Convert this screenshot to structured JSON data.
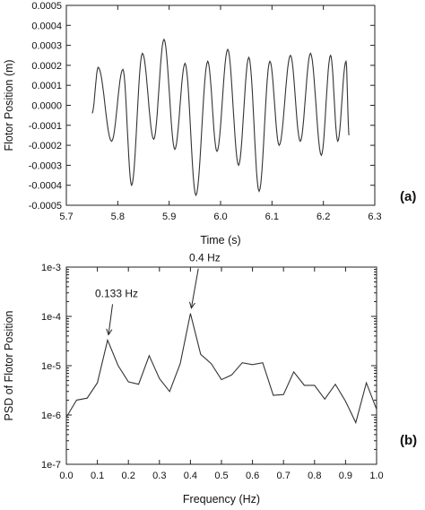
{
  "chart_data": [
    {
      "type": "line",
      "panel_label": "(a)",
      "xlabel": "Time  (s)",
      "ylabel": "Flotor Position  (m)",
      "xlim": [
        5.7,
        6.3
      ],
      "ylim": [
        -0.0005,
        0.0005
      ],
      "xticks": [
        "5.7",
        "5.8",
        "5.9",
        "6.0",
        "6.1",
        "6.2",
        "6.3"
      ],
      "yticks": [
        "0.0005",
        "0.0004",
        "0.0003",
        "0.0002",
        "0.0001",
        "0.0000",
        "-0.0001",
        "-0.0002",
        "-0.0003",
        "-0.0004",
        "-0.0005"
      ],
      "grid": false,
      "extrema": {
        "x": [
          5.75,
          5.762,
          5.788,
          5.81,
          5.827,
          5.848,
          5.87,
          5.89,
          5.911,
          5.931,
          5.952,
          5.975,
          5.993,
          6.014,
          6.035,
          6.055,
          6.075,
          6.096,
          6.114,
          6.136,
          6.155,
          6.175,
          6.196,
          6.214,
          6.228,
          6.244,
          6.25
        ],
        "y": [
          -4e-05,
          0.00019,
          -0.00018,
          0.00018,
          -0.0004,
          0.00026,
          -0.00017,
          0.00033,
          -0.00022,
          0.00021,
          -0.00045,
          0.00022,
          -0.00023,
          0.00028,
          -0.0003,
          0.00024,
          -0.00043,
          0.00022,
          -0.0002,
          0.00025,
          -0.00018,
          0.00026,
          -0.00025,
          0.00025,
          -0.00018,
          0.00022,
          -0.00015
        ]
      }
    },
    {
      "type": "line",
      "panel_label": "(b)",
      "xlabel": "Frequency  (Hz)",
      "ylabel": "PSD of Flotor Position",
      "xlim": [
        0.0,
        1.0
      ],
      "ylim": [
        1e-07,
        0.001
      ],
      "yscale": "log",
      "xticks": [
        "0.0",
        "0.1",
        "0.2",
        "0.3",
        "0.4",
        "0.5",
        "0.6",
        "0.7",
        "0.8",
        "0.9",
        "1.0"
      ],
      "yticks": [
        "1e-3",
        "1e-4",
        "1e-5",
        "1e-6",
        "1e-7"
      ],
      "grid": false,
      "x": [
        0.0,
        0.033,
        0.067,
        0.1,
        0.133,
        0.167,
        0.2,
        0.233,
        0.267,
        0.3,
        0.333,
        0.367,
        0.4,
        0.433,
        0.467,
        0.5,
        0.533,
        0.567,
        0.6,
        0.633,
        0.667,
        0.7,
        0.733,
        0.767,
        0.8,
        0.833,
        0.867,
        0.9,
        0.933,
        0.967,
        1.0
      ],
      "y": [
        9e-07,
        2e-06,
        2.2e-06,
        4.5e-06,
        3.3e-05,
        1e-05,
        4.7e-06,
        4.2e-06,
        1.6e-05,
        5.5e-06,
        3e-06,
        1.1e-05,
        0.000115,
        1.7e-05,
        1.1e-05,
        5.2e-06,
        6.5e-06,
        1.15e-05,
        1.05e-05,
        1.15e-05,
        2.5e-06,
        2.6e-06,
        7.5e-06,
        4e-06,
        4e-06,
        2.1e-06,
        4.2e-06,
        1.9e-06,
        7e-07,
        4.5e-06,
        1.3e-06
      ],
      "annotations": [
        {
          "text": "0.133 Hz",
          "x": 0.133,
          "y": 3.3e-05
        },
        {
          "text": "0.4 Hz",
          "x": 0.4,
          "y": 0.000115
        }
      ]
    }
  ]
}
